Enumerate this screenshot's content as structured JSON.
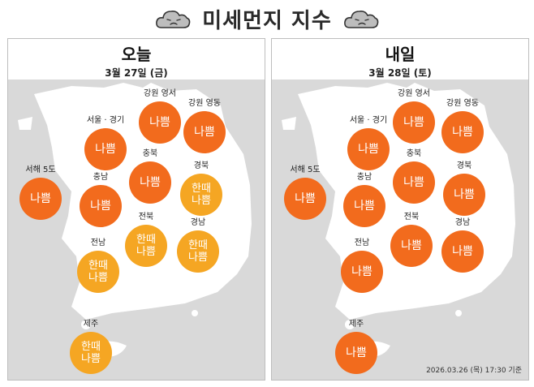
{
  "header": {
    "title": "미세먼지 지수",
    "icon_left": "sad-cloud-icon",
    "icon_right": "sad-cloud-icon"
  },
  "colors": {
    "bad": "#f26b1d",
    "sometimes_bad": "#f5a623",
    "map_land": "#ffffff",
    "map_sea": "#d9d9d9"
  },
  "today": {
    "title": "오늘",
    "date": "3월 27일 (금)",
    "regions": [
      {
        "name": "강원 영서",
        "value": "나쁨",
        "level": "bad"
      },
      {
        "name": "강원 영동",
        "value": "나쁨",
        "level": "bad"
      },
      {
        "name": "서울 · 경기",
        "value": "나쁨",
        "level": "bad"
      },
      {
        "name": "충북",
        "value": "나쁨",
        "level": "bad"
      },
      {
        "name": "경북",
        "value": "한때\n나쁨",
        "level": "sometimes_bad"
      },
      {
        "name": "서해 5도",
        "value": "나쁨",
        "level": "bad"
      },
      {
        "name": "충남",
        "value": "나쁨",
        "level": "bad"
      },
      {
        "name": "전북",
        "value": "한때\n나쁨",
        "level": "sometimes_bad"
      },
      {
        "name": "경남",
        "value": "한때\n나쁨",
        "level": "sometimes_bad"
      },
      {
        "name": "전남",
        "value": "한때\n나쁨",
        "level": "sometimes_bad"
      },
      {
        "name": "제주",
        "value": "한때\n나쁨",
        "level": "sometimes_bad"
      }
    ]
  },
  "tomorrow": {
    "title": "내일",
    "date": "3월 28일 (토)",
    "regions": [
      {
        "name": "강원 영서",
        "value": "나쁨",
        "level": "bad"
      },
      {
        "name": "강원 영동",
        "value": "나쁨",
        "level": "bad"
      },
      {
        "name": "서울 · 경기",
        "value": "나쁨",
        "level": "bad"
      },
      {
        "name": "충북",
        "value": "나쁨",
        "level": "bad"
      },
      {
        "name": "경북",
        "value": "나쁨",
        "level": "bad"
      },
      {
        "name": "서해 5도",
        "value": "나쁨",
        "level": "bad"
      },
      {
        "name": "충남",
        "value": "나쁨",
        "level": "bad"
      },
      {
        "name": "전북",
        "value": "나쁨",
        "level": "bad"
      },
      {
        "name": "경남",
        "value": "나쁨",
        "level": "bad"
      },
      {
        "name": "전남",
        "value": "나쁨",
        "level": "bad"
      },
      {
        "name": "제주",
        "value": "나쁨",
        "level": "bad"
      }
    ]
  },
  "footer": {
    "timestamp": "2026.03.26 (목) 17:30 기준"
  }
}
